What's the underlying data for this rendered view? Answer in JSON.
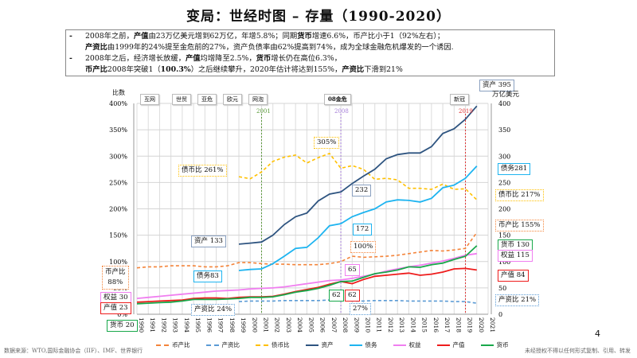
{
  "title": "变局：世经时图 – 存量（1990-2020）",
  "notes": {
    "l1": [
      "2008年之前，",
      "产值",
      "由23万亿美元增到62万亿，年增5.8%；同期",
      "货币",
      "增速6.6%，币产比小于1（92%左右）；"
    ],
    "l2": [
      "产资比",
      "由1999年的24%提至金危前的27%，资产负债率由62%提高到74%，成为全球金融危机爆发的一个诱因."
    ],
    "l3": [
      "2008年之后，经济增长放缓，",
      "产值",
      "均增降至2.5%，",
      "货币",
      "增长仍在高位6.3%，"
    ],
    "l4": [
      "币产比",
      "2008年突破1（",
      "100.3%",
      "）之后继续攀升，2020年估计将达到155%，",
      "产资比",
      "下滑到21%"
    ],
    "bullet": "-"
  },
  "events": [
    "互网",
    "世贸",
    "亚危",
    "欧元",
    "网泡",
    "08金危",
    "新冠"
  ],
  "event_years": {
    "y2001": "2001",
    "y2008": "2008",
    "y2019": "2019"
  },
  "annotations": {
    "asset395": "资产 395",
    "unit": "万亿美元",
    "debt281": "债务281",
    "dcr217": "债币比 217%",
    "mpr155": "币产比 155%",
    "money130": "货币 130",
    "equity115": "权益 115",
    "output84": "产值 84",
    "par21": "产资比 21%",
    "dcr261": "债币比 261%",
    "asset133": "资产 133",
    "mpr88a": "币产比",
    "mpr88b": "88%",
    "debt83": "债务83",
    "equity30": "权益 30",
    "output23": "产值 23",
    "money20": "货币 20",
    "par24": "产资比 24%",
    "dcr305": "305%",
    "asset232": "232",
    "debt172": "172",
    "mpr100": "100%",
    "equity65": "65",
    "money62": "62",
    "output62": "62",
    "par27": "27%"
  },
  "page_number": "4",
  "source": "数据来源：WTO,国际金融协会（IIF）、IMF、世界银行",
  "copyright": "未经授权不得以任何形式复制、引用、转发",
  "colors": {
    "币产比": "#f4843a",
    "产资比": "#5b9bd5",
    "债币比": "#ffc000",
    "资产": "#2e5480",
    "债务": "#1eb4f0",
    "权益": "#f07ef0",
    "产值": "#ee1c1c",
    "货币": "#18a84a"
  },
  "chart_data": {
    "type": "line",
    "ylabel_left": "比数",
    "ylabel_right": "万亿美元",
    "left_ticks": [
      "0%",
      "50%",
      "100%",
      "150%",
      "200%",
      "250%",
      "300%",
      "350%",
      "400%"
    ],
    "right_ticks": [
      "0",
      "50",
      "100",
      "150",
      "200",
      "250",
      "300",
      "350",
      "400"
    ],
    "ylim": [
      0,
      400
    ],
    "grid": true,
    "legend_position": "bottom",
    "x": [
      1990,
      1991,
      1992,
      1993,
      1994,
      1995,
      1996,
      1997,
      1998,
      1999,
      2000,
      2001,
      2002,
      2003,
      2004,
      2005,
      2006,
      2007,
      2008,
      2009,
      2010,
      2011,
      2012,
      2013,
      2014,
      2015,
      2016,
      2017,
      2018,
      2019,
      2020,
      2021
    ],
    "series": [
      {
        "name": "币产比",
        "axis": "left",
        "dash": true,
        "values": [
          88,
          90,
          90,
          92,
          92,
          92,
          90,
          90,
          92,
          98,
          98,
          96,
          95,
          95,
          94,
          94,
          94,
          96,
          100,
          110,
          108,
          109,
          110,
          112,
          115,
          118,
          121,
          120,
          122,
          125,
          155,
          null
        ]
      },
      {
        "name": "产资比",
        "axis": "left",
        "dash": true,
        "values": [
          null,
          null,
          null,
          null,
          null,
          null,
          null,
          null,
          null,
          24,
          25,
          25,
          25,
          26,
          26,
          26,
          26,
          27,
          27,
          25,
          25,
          26,
          26,
          26,
          25,
          25,
          25,
          25,
          24,
          24,
          21,
          null
        ]
      },
      {
        "name": "债币比",
        "axis": "left",
        "dash": true,
        "values": [
          null,
          null,
          null,
          null,
          null,
          null,
          null,
          null,
          null,
          261,
          257,
          270,
          290,
          298,
          302,
          287,
          297,
          305,
          277,
          282,
          275,
          256,
          258,
          255,
          239,
          239,
          237,
          247,
          237,
          238,
          217,
          null
        ]
      },
      {
        "name": "资产",
        "axis": "right",
        "dash": false,
        "values": [
          null,
          null,
          null,
          null,
          null,
          null,
          null,
          null,
          null,
          133,
          135,
          137,
          150,
          170,
          185,
          192,
          215,
          228,
          232,
          248,
          262,
          275,
          295,
          303,
          306,
          306,
          318,
          343,
          352,
          370,
          395,
          null
        ]
      },
      {
        "name": "债务",
        "axis": "right",
        "dash": false,
        "values": [
          null,
          null,
          null,
          null,
          null,
          null,
          null,
          null,
          null,
          83,
          85,
          86,
          96,
          110,
          125,
          127,
          145,
          168,
          172,
          185,
          193,
          200,
          213,
          217,
          216,
          213,
          220,
          240,
          245,
          258,
          281,
          null
        ]
      },
      {
        "name": "权益",
        "axis": "right",
        "dash": false,
        "values": [
          30,
          32,
          34,
          36,
          38,
          40,
          42,
          44,
          45,
          46,
          48,
          49,
          50,
          52,
          55,
          58,
          61,
          64,
          65,
          68,
          72,
          76,
          82,
          86,
          90,
          93,
          97,
          101,
          106,
          112,
          115,
          null
        ]
      },
      {
        "name": "产值",
        "axis": "right",
        "dash": false,
        "values": [
          23,
          24,
          25,
          26,
          27,
          30,
          31,
          31,
          30,
          32,
          33,
          33,
          34,
          38,
          43,
          47,
          51,
          57,
          62,
          58,
          66,
          72,
          74,
          76,
          78,
          74,
          76,
          80,
          86,
          87,
          84,
          null
        ]
      },
      {
        "name": "货币",
        "axis": "right",
        "dash": false,
        "values": [
          20,
          21,
          22,
          23,
          25,
          28,
          28,
          28,
          29,
          30,
          32,
          32,
          33,
          37,
          42,
          45,
          49,
          55,
          62,
          63,
          70,
          77,
          80,
          84,
          90,
          89,
          94,
          97,
          104,
          110,
          130,
          null
        ]
      }
    ]
  }
}
